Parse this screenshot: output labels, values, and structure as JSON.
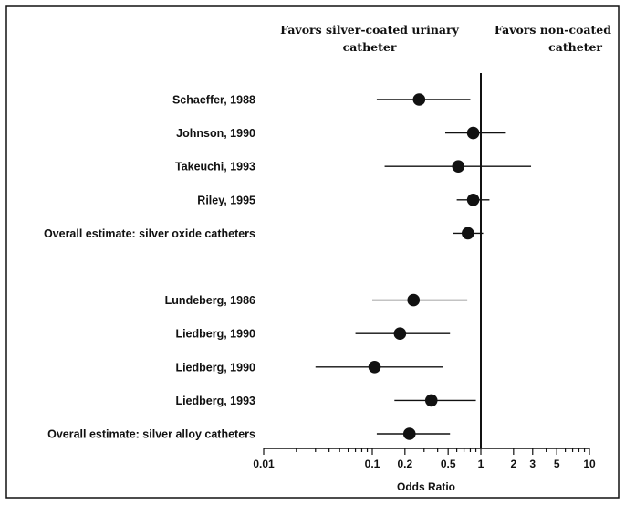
{
  "chart_data": {
    "type": "scatter",
    "subtype": "forest-plot",
    "xlabel": "Odds Ratio",
    "xscale": "log",
    "xlim": [
      0.01,
      10
    ],
    "reference_line": 1,
    "header_left": [
      "Favors silver-coated urinary",
      "catheter"
    ],
    "header_right": [
      "Favors non-coated",
      "catheter"
    ],
    "tick_labels": [
      {
        "value": 0.01,
        "label": "0.01"
      },
      {
        "value": 0.1,
        "label": "0.1"
      },
      {
        "value": 0.2,
        "label": "0.2"
      },
      {
        "value": 0.5,
        "label": "0.5"
      },
      {
        "value": 1,
        "label": "1"
      },
      {
        "value": 2,
        "label": "2"
      },
      {
        "value": 3,
        "label": "3"
      },
      {
        "value": 5,
        "label": "5"
      },
      {
        "value": 10,
        "label": "10"
      }
    ],
    "minor_ticks": [
      0.02,
      0.03,
      0.04,
      0.05,
      0.06,
      0.07,
      0.08,
      0.09,
      0.3,
      0.4,
      0.6,
      0.7,
      0.8,
      0.9,
      4,
      6,
      7,
      8,
      9
    ],
    "rows": [
      {
        "label": "Schaeffer, 1988",
        "or": 0.27,
        "lo": 0.11,
        "hi": 0.8,
        "empty_before": false
      },
      {
        "label": "Johnson, 1990",
        "or": 0.85,
        "lo": 0.47,
        "hi": 1.7,
        "empty_before": false
      },
      {
        "label": "Takeuchi, 1993",
        "or": 0.62,
        "lo": 0.13,
        "hi": 2.9,
        "empty_before": false
      },
      {
        "label": "Riley, 1995",
        "or": 0.85,
        "lo": 0.6,
        "hi": 1.2,
        "empty_before": false
      },
      {
        "label": "Overall estimate: silver oxide catheters",
        "or": 0.76,
        "lo": 0.55,
        "hi": 1.05,
        "empty_before": false
      },
      {
        "label": "Lundeberg, 1986",
        "or": 0.24,
        "lo": 0.1,
        "hi": 0.75,
        "empty_before": true
      },
      {
        "label": "Liedberg, 1990",
        "or": 0.18,
        "lo": 0.07,
        "hi": 0.52,
        "empty_before": false
      },
      {
        "label": "Liedberg, 1990",
        "or": 0.105,
        "lo": 0.03,
        "hi": 0.45,
        "empty_before": false
      },
      {
        "label": "Liedberg, 1993",
        "or": 0.35,
        "lo": 0.16,
        "hi": 0.9,
        "empty_before": false
      },
      {
        "label": "Overall estimate: silver alloy catheters",
        "or": 0.22,
        "lo": 0.11,
        "hi": 0.52,
        "empty_before": false
      }
    ],
    "legend": "none",
    "grid": false
  }
}
